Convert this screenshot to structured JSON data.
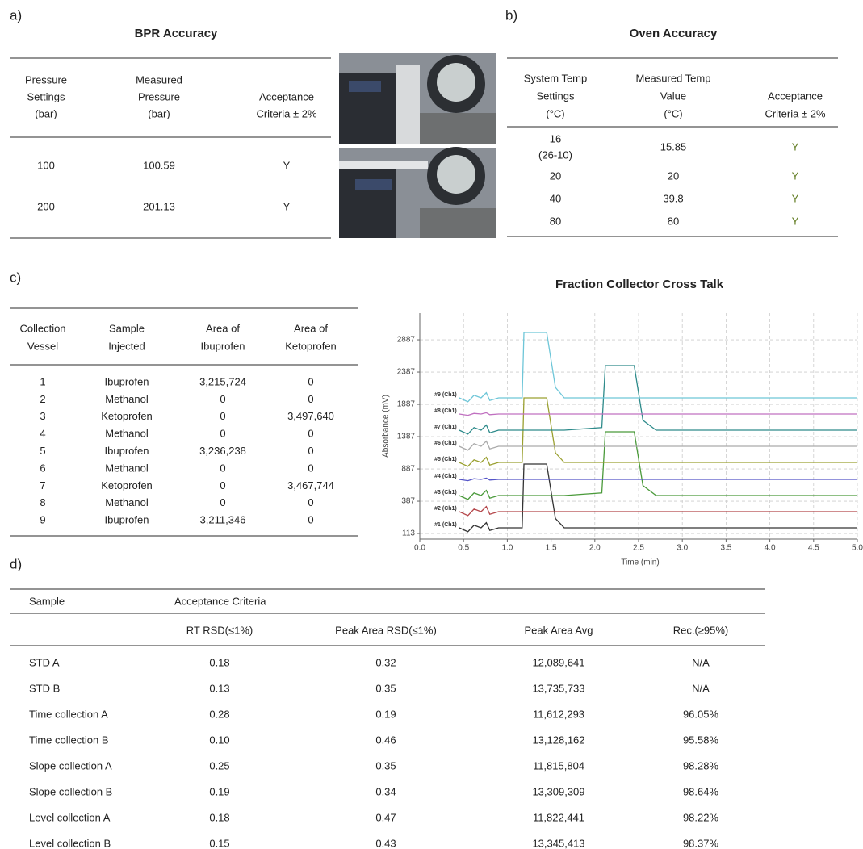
{
  "panel_a": {
    "label": "a)",
    "title": "BPR Accuracy",
    "header": [
      [
        "Pressure",
        "Settings",
        "(bar)"
      ],
      [
        "Measured",
        "Pressure",
        "(bar)"
      ],
      [
        "Acceptance",
        "Criteria ± 2%"
      ]
    ],
    "rows": [
      [
        "100",
        "100.59",
        "Y"
      ],
      [
        "200",
        "201.13",
        "Y"
      ]
    ]
  },
  "panel_b": {
    "label": "b)",
    "title": "Oven Accuracy",
    "header": [
      [
        "System Temp",
        "Settings",
        "(°C)"
      ],
      [
        "Measured Temp",
        "Value",
        "(°C)"
      ],
      [
        "Acceptance",
        "Criteria ± 2%"
      ]
    ],
    "rows": [
      [
        [
          "16",
          "(26-10)"
        ],
        "15.85",
        "Y"
      ],
      [
        "20",
        "20",
        "Y"
      ],
      [
        "40",
        "39.8",
        "Y"
      ],
      [
        "80",
        "80",
        "Y"
      ]
    ]
  },
  "panel_c": {
    "label": "c)",
    "header": [
      [
        "Collection",
        "Vessel"
      ],
      [
        "Sample",
        "Injected"
      ],
      [
        "Area of",
        "Ibuprofen"
      ],
      [
        "Area of",
        "Ketoprofen"
      ]
    ],
    "rows": [
      [
        "1",
        "Ibuprofen",
        "3,215,724",
        "0"
      ],
      [
        "2",
        "Methanol",
        "0",
        "0"
      ],
      [
        "3",
        "Ketoprofen",
        "0",
        "3,497,640"
      ],
      [
        "4",
        "Methanol",
        "0",
        "0"
      ],
      [
        "5",
        "Ibuprofen",
        "3,236,238",
        "0"
      ],
      [
        "6",
        "Methanol",
        "0",
        "0"
      ],
      [
        "7",
        "Ketoprofen",
        "0",
        "3,467,744"
      ],
      [
        "8",
        "Methanol",
        "0",
        "0"
      ],
      [
        "9",
        "Ibuprofen",
        "3,211,346",
        "0"
      ]
    ]
  },
  "chart_data": {
    "type": "line",
    "title": "Fraction Collector Cross Talk",
    "x_label": "Time (min)",
    "y_label": "Absorbance (mV)",
    "x": [
      0.45,
      0.55,
      0.62,
      0.7,
      0.76,
      0.8,
      0.9,
      1.17,
      1.19,
      1.45,
      1.55,
      1.65,
      2.08,
      2.12,
      2.45,
      2.55,
      2.7,
      5.0
    ],
    "xlim": [
      0,
      5
    ],
    "ylim": [
      -200,
      3300
    ],
    "xticks": [
      {
        "value": 0,
        "label": "0.0"
      },
      0.5,
      {
        "value": 1,
        "label": "1.0"
      },
      1.5,
      {
        "value": 2,
        "label": "2.0"
      },
      2.5,
      {
        "value": 3,
        "label": "3.0"
      },
      3.5,
      {
        "value": 4,
        "label": "4.0"
      },
      4.5,
      {
        "value": 5,
        "label": "5.0"
      }
    ],
    "yticks": [
      -113,
      387,
      887,
      1387,
      1887,
      2387,
      2887
    ],
    "grid": true,
    "series": [
      {
        "name": "#1 (Ch1)",
        "color": "#333333",
        "values": [
          -25,
          -85,
          15,
          -25,
          55,
          -65,
          -25,
          -25,
          962,
          962,
          120,
          -25,
          -25,
          -25,
          -25,
          -25,
          -25,
          -25
        ]
      },
      {
        "name": "#2 (Ch1)",
        "color": "#b5474b",
        "values": [
          225,
          165,
          265,
          225,
          305,
          185,
          225,
          225,
          225,
          225,
          225,
          225,
          225,
          225,
          225,
          225,
          225,
          225
        ]
      },
      {
        "name": "#3 (Ch1)",
        "color": "#4a9a3a",
        "values": [
          475,
          415,
          515,
          475,
          555,
          435,
          475,
          475,
          475,
          475,
          475,
          475,
          515,
          1462,
          1462,
          630,
          475,
          475
        ]
      },
      {
        "name": "#4 (Ch1)",
        "color": "#5555c8",
        "values": [
          725,
          705,
          735,
          725,
          745,
          715,
          725,
          725,
          725,
          725,
          725,
          725,
          725,
          725,
          725,
          725,
          725,
          725
        ]
      },
      {
        "name": "#5 (Ch1)",
        "color": "#9aa030",
        "values": [
          987,
          927,
          1027,
          987,
          1067,
          947,
          987,
          987,
          1987,
          1987,
          1137,
          987,
          987,
          987,
          987,
          987,
          987,
          987
        ]
      },
      {
        "name": "#6 (Ch1)",
        "color": "#aaaaaa",
        "values": [
          1237,
          1177,
          1277,
          1237,
          1317,
          1197,
          1237,
          1237,
          1237,
          1237,
          1237,
          1237,
          1237,
          1237,
          1237,
          1237,
          1237,
          1237
        ]
      },
      {
        "name": "#7 (Ch1)",
        "color": "#2e8b8b",
        "values": [
          1487,
          1427,
          1527,
          1487,
          1567,
          1447,
          1487,
          1487,
          1487,
          1487,
          1487,
          1487,
          1527,
          2487,
          2487,
          1640,
          1487,
          1487
        ]
      },
      {
        "name": "#8 (Ch1)",
        "color": "#c070c0",
        "values": [
          1737,
          1717,
          1747,
          1737,
          1757,
          1727,
          1737,
          1737,
          1737,
          1737,
          1737,
          1737,
          1737,
          1737,
          1737,
          1737,
          1737,
          1737
        ]
      },
      {
        "name": "#9 (Ch1)",
        "color": "#6ec6d8",
        "values": [
          1987,
          1927,
          2027,
          1987,
          2067,
          1947,
          1987,
          1987,
          3000,
          3000,
          2150,
          1987,
          1987,
          1987,
          1987,
          1987,
          1987,
          1987
        ]
      }
    ]
  },
  "panel_d": {
    "label": "d)",
    "header_top": [
      "Sample",
      "Acceptance Criteria"
    ],
    "columns": [
      "RT RSD(≤1%)",
      "Peak Area RSD(≤1%)",
      "Peak Area Avg",
      "Rec.(≥95%)"
    ],
    "rows": [
      [
        "STD A",
        "0.18",
        "0.32",
        "12,089,641",
        "N/A"
      ],
      [
        "STD B",
        "0.13",
        "0.35",
        "13,735,733",
        "N/A"
      ],
      [
        "Time collection A",
        "0.28",
        "0.19",
        "11,612,293",
        "96.05%"
      ],
      [
        "Time collection B",
        "0.10",
        "0.46",
        "13,128,162",
        "95.58%"
      ],
      [
        "Slope  collection A",
        "0.25",
        "0.35",
        "11,815,804",
        "98.28%"
      ],
      [
        "Slope collection B",
        "0.19",
        "0.34",
        "13,309,309",
        "98.64%"
      ],
      [
        "Level collection A",
        "0.18",
        "0.47",
        "11,822,441",
        "98.22%"
      ],
      [
        "Level collection B",
        "0.15",
        "0.43",
        "13,345,413",
        "98.37%"
      ]
    ]
  }
}
